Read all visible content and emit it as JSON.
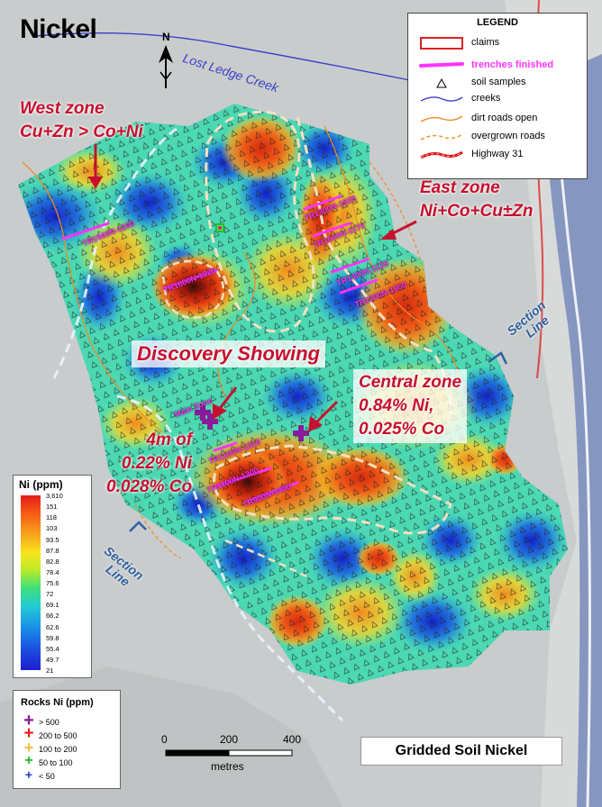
{
  "map": {
    "title": "Nickel",
    "subtitle": "Gridded Soil Nickel",
    "north_label": "N",
    "creek_label": "Lost Ledge Creek"
  },
  "zones": {
    "west": {
      "line1": "West zone",
      "line2": "Cu+Zn > Co+Ni"
    },
    "east": {
      "line1": "East zone",
      "line2": "Ni+Co+Cu±Zn"
    },
    "discovery": "Discovery Showing",
    "central": {
      "line1": "Central zone",
      "line2": "0.84% Ni,",
      "line3": "0.025% Co"
    },
    "west_assay": {
      "line1": "4m of",
      "line2": "0.22% Ni",
      "line3": "0.028% Co"
    }
  },
  "section_labels": {
    "east": {
      "line1": "Section",
      "line2": "Line"
    },
    "west": {
      "line1": "Section",
      "line2": "Line"
    }
  },
  "trenches": [
    "TR1900N-1200",
    "TR1300N-1925",
    "TR1500N-1175",
    "TR1400N-1125",
    "TR1300N-1950",
    "TR1600N-1325",
    "Main Zone",
    "TR1100N-1310",
    "TR1100N-1300",
    "TR900N-1400"
  ],
  "legend": {
    "title": "LEGEND",
    "items": [
      {
        "label": "claims",
        "symbol": "red-box"
      },
      {
        "label": "trenches finished",
        "symbol": "magenta-line"
      },
      {
        "label": "soil samples",
        "symbol": "triangle"
      },
      {
        "label": "creeks",
        "symbol": "blue-line"
      },
      {
        "label": "dirt roads open",
        "symbol": "orange-line"
      },
      {
        "label": "overgrown roads",
        "symbol": "orange-dashed"
      },
      {
        "label": "Highway 31",
        "symbol": "red-thick-line"
      }
    ],
    "colors": {
      "claims": "#e02020",
      "trench": "#ff33ff",
      "creek": "#3a40c8",
      "road": "#f08a24",
      "highway": "#e01010"
    }
  },
  "ni_ramp": {
    "title": "Ni (ppm)",
    "values": [
      "3,610",
      "151",
      "118",
      "103",
      "93.5",
      "87.8",
      "82.8",
      "78.4",
      "75.6",
      "72",
      "69.1",
      "66.2",
      "62.6",
      "59.8",
      "55.4",
      "49.7",
      "21"
    ]
  },
  "rocks": {
    "title": "Rocks Ni (ppm)",
    "items": [
      {
        "label": "> 500",
        "color": "#8a1a9a",
        "size": 14
      },
      {
        "label": "200 to 500",
        "color": "#ee1c1c",
        "size": 13
      },
      {
        "label": "100 to 200",
        "color": "#f4c242",
        "size": 12
      },
      {
        "label": "50 to 100",
        "color": "#22c022",
        "size": 10
      },
      {
        "label": "< 50",
        "color": "#1a3fd0",
        "size": 8
      }
    ]
  },
  "scale": {
    "ticks": [
      "0",
      "200",
      "400"
    ],
    "unit": "metres"
  }
}
